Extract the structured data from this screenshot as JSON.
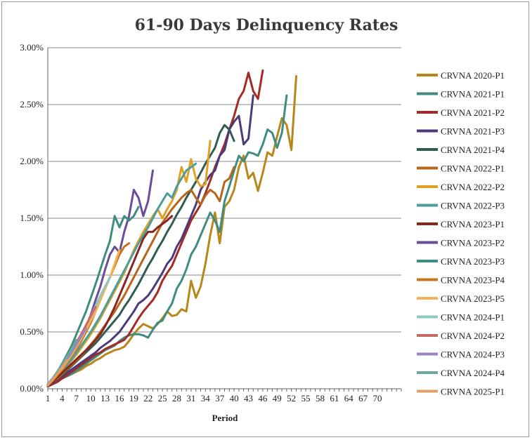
{
  "chart_data": {
    "type": "line",
    "title": "61-90 Days Delinquency Rates",
    "xlabel": "Period",
    "ylabel": "",
    "xlim": [
      1,
      75
    ],
    "ylim": [
      0,
      0.03
    ],
    "x_ticks": [
      1,
      4,
      7,
      10,
      13,
      16,
      19,
      22,
      25,
      28,
      31,
      34,
      37,
      40,
      43,
      46,
      49,
      52,
      55,
      58,
      61,
      64,
      67,
      70
    ],
    "y_ticks": [
      "0.00%",
      "0.50%",
      "1.00%",
      "1.50%",
      "2.00%",
      "2.50%",
      "3.00%"
    ],
    "y_tick_values": [
      0,
      0.005,
      0.01,
      0.015,
      0.02,
      0.025,
      0.03
    ],
    "grid": "horizontal",
    "legend_position": "right",
    "series": [
      {
        "name": "CRVNA 2020-P1",
        "color": "#b8861b",
        "values": [
          0.0003,
          0.0005,
          0.0007,
          0.001,
          0.0011,
          0.0013,
          0.0015,
          0.0017,
          0.002,
          0.0022,
          0.0025,
          0.0027,
          0.003,
          0.0032,
          0.0034,
          0.0035,
          0.0037,
          0.0042,
          0.0048,
          0.0053,
          0.0057,
          0.0055,
          0.0053,
          0.0057,
          0.0062,
          0.0068,
          0.0064,
          0.0065,
          0.007,
          0.0068,
          0.0095,
          0.008,
          0.009,
          0.011,
          0.0135,
          0.0155,
          0.0128,
          0.016,
          0.0165,
          0.0175,
          0.0195,
          0.0205,
          0.0185,
          0.019,
          0.0174,
          0.019,
          0.0208,
          0.0205,
          0.0222,
          0.0238,
          0.0232,
          0.021,
          0.0275
        ]
      },
      {
        "name": "CRVNA 2021-P1",
        "color": "#3f8c80",
        "values": [
          0.0003,
          0.0005,
          0.0007,
          0.0009,
          0.0011,
          0.0013,
          0.0016,
          0.0019,
          0.0022,
          0.0025,
          0.0028,
          0.0031,
          0.0034,
          0.0036,
          0.0038,
          0.0042,
          0.0045,
          0.0047,
          0.0048,
          0.0048,
          0.0047,
          0.0045,
          0.0052,
          0.0058,
          0.006,
          0.0068,
          0.0075,
          0.0088,
          0.0095,
          0.0105,
          0.0118,
          0.0125,
          0.0135,
          0.0145,
          0.0155,
          0.0148,
          0.0138,
          0.0165,
          0.0178,
          0.0192,
          0.0205,
          0.02,
          0.0208,
          0.0207,
          0.0205,
          0.0215,
          0.0228,
          0.0225,
          0.0212,
          0.0225,
          0.0258
        ]
      },
      {
        "name": "CRVNA 2021-P2",
        "color": "#a52a26",
        "values": [
          0.0002,
          0.0004,
          0.0006,
          0.0009,
          0.0012,
          0.0015,
          0.0018,
          0.0021,
          0.0024,
          0.0027,
          0.003,
          0.0032,
          0.0035,
          0.0037,
          0.0039,
          0.0041,
          0.0043,
          0.0048,
          0.0055,
          0.0062,
          0.0068,
          0.0073,
          0.0078,
          0.0085,
          0.0095,
          0.0102,
          0.0108,
          0.0118,
          0.0128,
          0.0138,
          0.0148,
          0.0155,
          0.0162,
          0.0172,
          0.0183,
          0.0195,
          0.0205,
          0.0215,
          0.0228,
          0.024,
          0.0255,
          0.0262,
          0.0278,
          0.0262,
          0.0255,
          0.028
        ]
      },
      {
        "name": "CRVNA 2021-P3",
        "color": "#4d3a7c",
        "values": [
          0.0003,
          0.0005,
          0.0008,
          0.0011,
          0.0014,
          0.0017,
          0.002,
          0.0023,
          0.0026,
          0.0029,
          0.0032,
          0.0036,
          0.0039,
          0.0042,
          0.0046,
          0.005,
          0.0056,
          0.0062,
          0.0068,
          0.0075,
          0.0078,
          0.0082,
          0.0088,
          0.0095,
          0.0102,
          0.011,
          0.0115,
          0.0125,
          0.0132,
          0.0142,
          0.0152,
          0.0162,
          0.0175,
          0.0182,
          0.0188,
          0.0192,
          0.0205,
          0.021,
          0.0228,
          0.0235,
          0.024,
          0.0215,
          0.022,
          0.0258
        ]
      },
      {
        "name": "CRVNA 2021-P4",
        "color": "#2f5d52",
        "values": [
          0.0003,
          0.0006,
          0.0009,
          0.0012,
          0.0016,
          0.002,
          0.0024,
          0.0028,
          0.0032,
          0.0036,
          0.004,
          0.0045,
          0.005,
          0.0055,
          0.006,
          0.0065,
          0.0072,
          0.0078,
          0.0085,
          0.0092,
          0.01,
          0.0108,
          0.0115,
          0.0123,
          0.013,
          0.0138,
          0.0145,
          0.0153,
          0.016,
          0.0168,
          0.0175,
          0.0182,
          0.019,
          0.0198,
          0.0205,
          0.0212,
          0.0225,
          0.0232,
          0.0228,
          0.0218
        ]
      },
      {
        "name": "CRVNA 2022-P1",
        "color": "#b8651b",
        "values": [
          0.0003,
          0.0006,
          0.0009,
          0.0013,
          0.0017,
          0.0021,
          0.0025,
          0.0029,
          0.0034,
          0.0039,
          0.0044,
          0.005,
          0.0056,
          0.0062,
          0.0068,
          0.0075,
          0.0082,
          0.009,
          0.0098,
          0.0106,
          0.0114,
          0.0122,
          0.013,
          0.0138,
          0.0146,
          0.0152,
          0.0158,
          0.0163,
          0.0168,
          0.0172,
          0.0175,
          0.0168,
          0.0162,
          0.017,
          0.0175,
          0.0172,
          0.0165,
          0.0182,
          0.0185,
          0.0195
        ]
      },
      {
        "name": "CRVNA 2022-P2",
        "color": "#e3a020",
        "values": [
          0.0003,
          0.0007,
          0.0011,
          0.0016,
          0.002,
          0.0025,
          0.003,
          0.0036,
          0.0042,
          0.0048,
          0.0055,
          0.0062,
          0.007,
          0.0078,
          0.0086,
          0.0094,
          0.0102,
          0.0112,
          0.0122,
          0.013,
          0.0138,
          0.0145,
          0.0152,
          0.0158,
          0.015,
          0.0158,
          0.0165,
          0.0175,
          0.0195,
          0.0182,
          0.0202,
          0.0185,
          0.0178,
          0.018,
          0.0218
        ]
      },
      {
        "name": "CRVNA 2022-P3",
        "color": "#4b9e9c",
        "values": [
          0.0003,
          0.0007,
          0.0011,
          0.0016,
          0.0021,
          0.0026,
          0.0032,
          0.0038,
          0.0044,
          0.005,
          0.0057,
          0.0064,
          0.0072,
          0.008,
          0.0088,
          0.0096,
          0.0104,
          0.0112,
          0.012,
          0.0128,
          0.0135,
          0.0142,
          0.015,
          0.0158,
          0.0165,
          0.0172,
          0.0168,
          0.0178,
          0.0185,
          0.0192,
          0.0195,
          0.0198
        ]
      },
      {
        "name": "CRVNA 2023-P1",
        "color": "#8b2520",
        "values": [
          0.0003,
          0.0006,
          0.001,
          0.0014,
          0.0018,
          0.0022,
          0.0026,
          0.003,
          0.0034,
          0.0038,
          0.0043,
          0.0048,
          0.0055,
          0.0063,
          0.0072,
          0.0082,
          0.0092,
          0.0102,
          0.0112,
          0.0122,
          0.0132,
          0.0138,
          0.0138,
          0.0142,
          0.0145,
          0.0148,
          0.0152
        ]
      },
      {
        "name": "CRVNA 2023-P2",
        "color": "#6a4c9c",
        "values": [
          0.0004,
          0.0008,
          0.0013,
          0.0018,
          0.0024,
          0.003,
          0.0037,
          0.0045,
          0.0055,
          0.0065,
          0.0078,
          0.009,
          0.0105,
          0.0118,
          0.0125,
          0.012,
          0.0138,
          0.0152,
          0.0175,
          0.0168,
          0.0152,
          0.0165,
          0.0192
        ]
      },
      {
        "name": "CRVNA 2023-P3",
        "color": "#3f8c80",
        "values": [
          0.0004,
          0.0009,
          0.0015,
          0.0022,
          0.003,
          0.0038,
          0.0048,
          0.0058,
          0.0068,
          0.008,
          0.0092,
          0.0105,
          0.0118,
          0.013,
          0.0152,
          0.0142,
          0.0152,
          0.0148,
          0.0152,
          0.016
        ]
      },
      {
        "name": "CRVNA 2023-P4",
        "color": "#c9741c",
        "values": [
          0.0003,
          0.0007,
          0.0012,
          0.0017,
          0.0023,
          0.0029,
          0.0035,
          0.0042,
          0.005,
          0.0058,
          0.0068,
          0.0078,
          0.0088,
          0.0098,
          0.0108,
          0.0118,
          0.0125,
          0.0128
        ]
      },
      {
        "name": "CRVNA 2023-P5",
        "color": "#f0b35a",
        "values": [
          0.0004,
          0.0008,
          0.0013,
          0.0018,
          0.0024,
          0.003,
          0.0037,
          0.0044,
          0.0052,
          0.006,
          0.0068,
          0.0078,
          0.0088,
          0.0098,
          0.011,
          0.0122
        ]
      },
      {
        "name": "CRVNA 2024-P1",
        "color": "#8fc7c9",
        "values": [
          0.0004,
          0.0009,
          0.0014,
          0.002,
          0.0026,
          0.0033,
          0.004,
          0.0048,
          0.0056,
          0.0064,
          0.0073,
          0.0082,
          0.009,
          0.0098
        ]
      },
      {
        "name": "CRVNA 2024-P2",
        "color": "#c96a6a",
        "values": [
          0.0004,
          0.0009,
          0.0015,
          0.0021,
          0.0027,
          0.0034,
          0.0041,
          0.0048,
          0.0056,
          0.0064,
          0.0072
        ]
      },
      {
        "name": "CRVNA 2024-P3",
        "color": "#9b84c4",
        "values": [
          0.0004,
          0.0009,
          0.0014,
          0.002,
          0.0026,
          0.0032,
          0.0039,
          0.0046,
          0.0053
        ]
      },
      {
        "name": "CRVNA 2024-P4",
        "color": "#6aa8a0",
        "values": [
          0.0004,
          0.0009,
          0.0015,
          0.0021,
          0.0028,
          0.0035,
          0.0043
        ]
      },
      {
        "name": "CRVNA 2025-P1",
        "color": "#e39c6a",
        "values": [
          0.0003,
          0.0008,
          0.0013,
          0.0019,
          0.0025
        ]
      }
    ]
  }
}
